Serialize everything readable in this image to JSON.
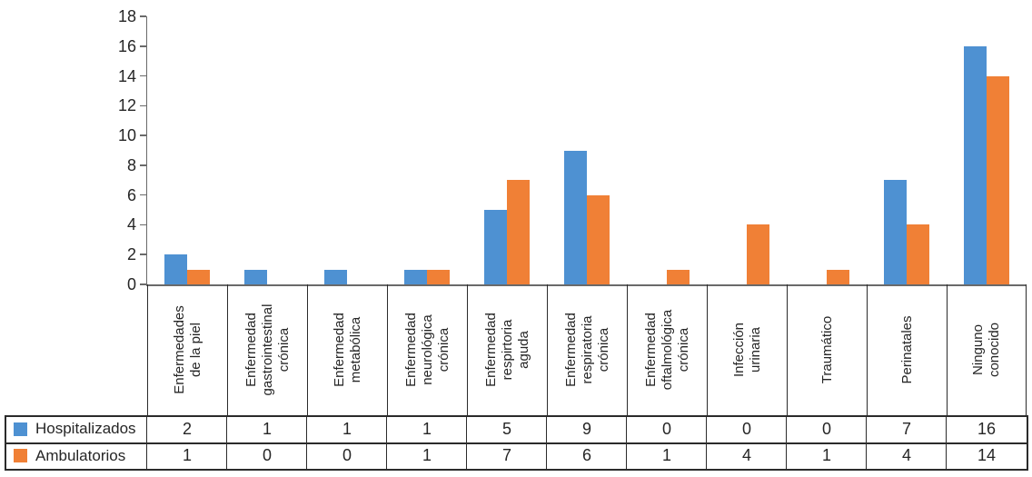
{
  "chart_data": {
    "type": "bar",
    "title": "",
    "xlabel": "",
    "ylabel": "",
    "categories": [
      {
        "label": "Enfermedades de la piel",
        "lines": [
          "Enfermedades",
          "de la piel"
        ]
      },
      {
        "label": "Enfermedad gastrointestinal crónica",
        "lines": [
          "Enfermedad",
          "gastrointestinal",
          "crónica"
        ]
      },
      {
        "label": "Enfermedad metabólica",
        "lines": [
          "Enfermedad",
          "metabólica"
        ]
      },
      {
        "label": "Enfermedad neurológica crónica",
        "lines": [
          "Enfermedad",
          "neurológica",
          "crónica"
        ]
      },
      {
        "label": "Enfermedad respirtoria aguda",
        "lines": [
          "Enfermedad",
          "respirtoria",
          "aguda"
        ]
      },
      {
        "label": "Enfermedad respiratoria crónica",
        "lines": [
          "Enfermedad",
          "respiratoria",
          "crónica"
        ]
      },
      {
        "label": "Enfermedad oftalmológica crónica",
        "lines": [
          "Enfermedad",
          "oftalmológica",
          "crónica"
        ]
      },
      {
        "label": "Infección urinaria",
        "lines": [
          "Infección",
          "urinaria"
        ]
      },
      {
        "label": "Traumático",
        "lines": [
          "Traumático"
        ]
      },
      {
        "label": "Perinatales",
        "lines": [
          "Perinatales"
        ]
      },
      {
        "label": "Ninguno conocido",
        "lines": [
          "Ninguno",
          "conocido"
        ]
      }
    ],
    "series": [
      {
        "name": "Hospitalizados",
        "color": "#4E91D2",
        "values": [
          2,
          1,
          1,
          1,
          5,
          9,
          0,
          0,
          0,
          7,
          16
        ]
      },
      {
        "name": "Ambulatorios",
        "color": "#F08036",
        "values": [
          1,
          0,
          0,
          1,
          7,
          6,
          1,
          4,
          1,
          4,
          14
        ]
      }
    ],
    "ylim": [
      0,
      18
    ],
    "y_ticks": [
      "0",
      "2",
      "4",
      "6",
      "8",
      "10",
      "12",
      "14",
      "16",
      "18"
    ],
    "grid": false,
    "legend_position": "bottom-table",
    "colors": {
      "axis_line": "#6A6A6A",
      "table_border": "#2B2B2B",
      "text": "#262626",
      "background": "#FFFFFF"
    }
  }
}
